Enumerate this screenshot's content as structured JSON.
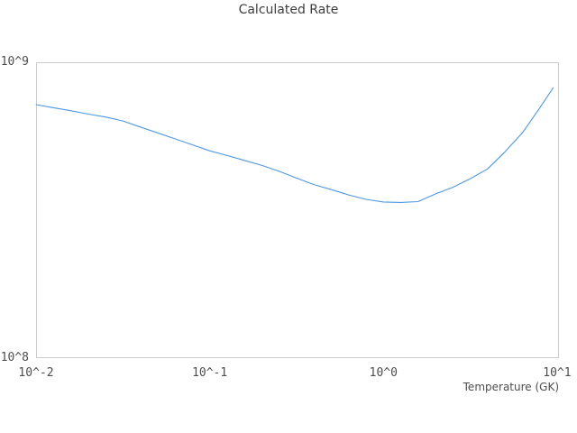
{
  "chart": {
    "title": "Calculated Rate",
    "xlabel": "Temperature (GK)"
  },
  "colors": {
    "line": "#4f97e0",
    "plot_border": "#cccccc",
    "title_text": "#3d3d3d",
    "tick_text": "#4d4d4d",
    "background": "#ffffff"
  },
  "chart_data": {
    "type": "line",
    "title": "Calculated Rate",
    "xlabel": "Temperature (GK)",
    "ylabel": "",
    "x_scale": "log",
    "y_scale": "log",
    "x_range": [
      0.01,
      10.25
    ],
    "y_range": [
      100000000.0,
      1000000000.0
    ],
    "grid": false,
    "legend": false,
    "x_ticks": [
      {
        "value": 0.01,
        "label": "10^-2"
      },
      {
        "value": 0.1,
        "label": "10^-1"
      },
      {
        "value": 1,
        "label": "10^0"
      },
      {
        "value": 10,
        "label": "10^1"
      }
    ],
    "y_ticks": [
      {
        "value": 100000000.0,
        "label": "10^8"
      },
      {
        "value": 1000000000.0,
        "label": "10^9"
      }
    ],
    "series": [
      {
        "name": "calculated-rate",
        "color": "#4f97e0",
        "x": [
          0.01,
          0.0126,
          0.0158,
          0.02,
          0.0251,
          0.0316,
          0.0398,
          0.0501,
          0.0631,
          0.0794,
          0.1,
          0.126,
          0.158,
          0.2,
          0.251,
          0.316,
          0.398,
          0.501,
          0.631,
          0.794,
          1.0,
          1.26,
          1.58,
          2.0,
          2.51,
          3.16,
          3.98,
          5.01,
          6.31,
          7.94,
          9.5
        ],
        "values": [
          719000000.0,
          702000000.0,
          686000000.0,
          668000000.0,
          653000000.0,
          633000000.0,
          604000000.0,
          577000000.0,
          551000000.0,
          526000000.0,
          502000000.0,
          484000000.0,
          466000000.0,
          448000000.0,
          428000000.0,
          406000000.0,
          386000000.0,
          371000000.0,
          356000000.0,
          344000000.0,
          337000000.0,
          336000000.0,
          338000000.0,
          359000000.0,
          378000000.0,
          404000000.0,
          436000000.0,
          498000000.0,
          577000000.0,
          700000000.0,
          820000000.0
        ]
      }
    ]
  }
}
